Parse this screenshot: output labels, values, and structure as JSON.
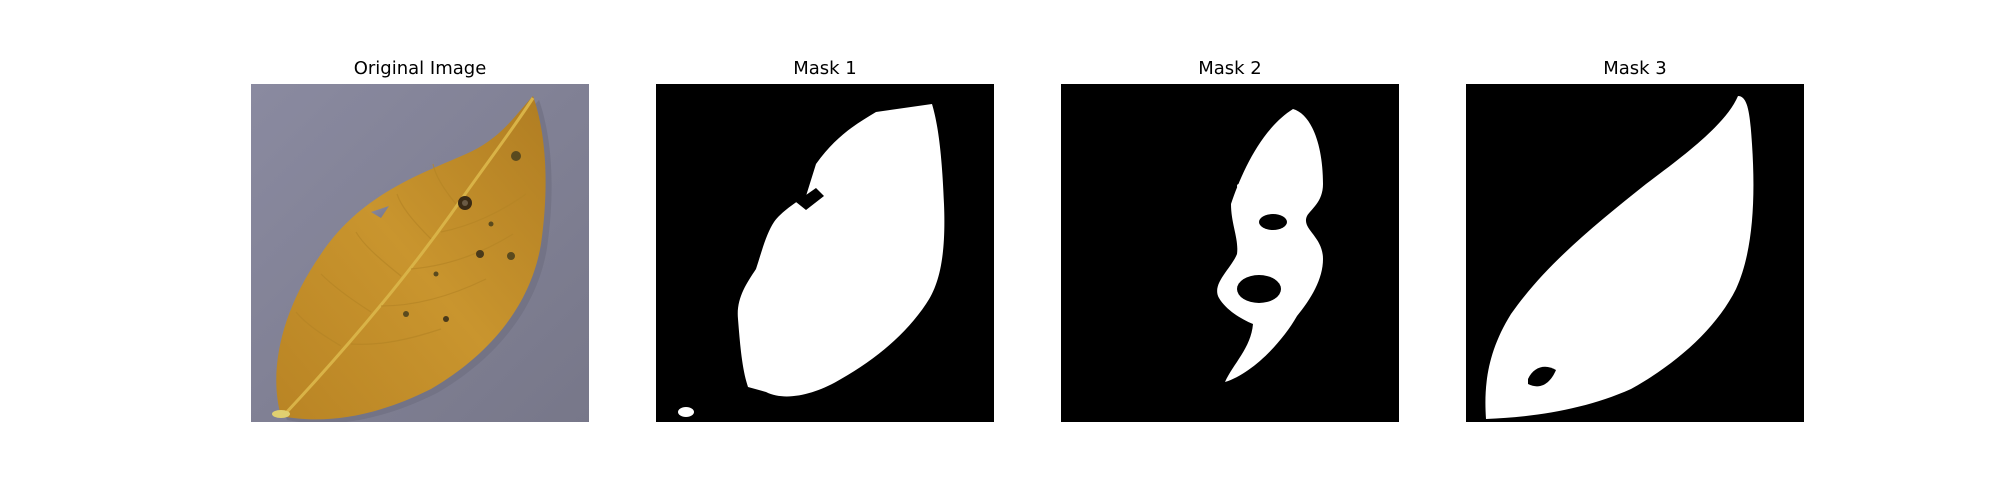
{
  "figure": {
    "panels": [
      {
        "title": "Original Image"
      },
      {
        "title": "Mask 1"
      },
      {
        "title": "Mask 2"
      },
      {
        "title": "Mask 3"
      }
    ]
  },
  "colors": {
    "background_gray": "#7f7f90",
    "leaf_orange": "#c08a28",
    "leaf_vein": "#d8b040",
    "mask_foreground": "#ffffff",
    "mask_background": "#000000"
  }
}
